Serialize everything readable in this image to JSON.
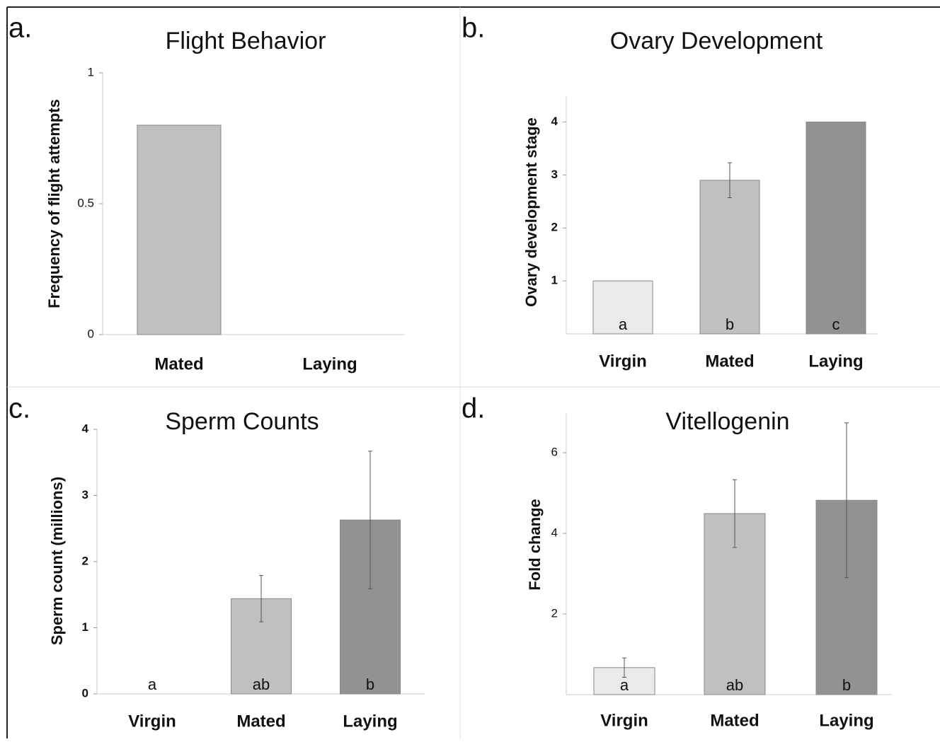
{
  "chart_data": [
    {
      "type": "bar",
      "panel_label": "a.",
      "title": "Flight Behavior",
      "y_label": "Frequency of flight attempts",
      "categories": [
        "Mated",
        "Laying"
      ],
      "values": [
        0.8,
        0
      ],
      "colors": [
        "#c0c0c0",
        "#c0c0c0"
      ],
      "ylim": [
        0,
        1
      ],
      "yticks": [
        0,
        0.5,
        1
      ]
    },
    {
      "type": "bar",
      "panel_label": "b.",
      "title": "Ovary Development",
      "y_label": "Ovary development stage",
      "categories": [
        "Virgin",
        "Mated",
        "Laying"
      ],
      "values": [
        1,
        2.9,
        4
      ],
      "errors": [
        null,
        0.33,
        null
      ],
      "bar_labels": [
        "a",
        "b",
        "c"
      ],
      "colors": [
        "#ebebeb",
        "#c0c0c0",
        "#929292"
      ],
      "ylim": [
        0,
        4.5
      ],
      "yticks": [
        1,
        2,
        3,
        4
      ]
    },
    {
      "type": "bar",
      "panel_label": "c.",
      "title": "Sperm Counts",
      "y_label": "Sperm count (millions)",
      "categories": [
        "Virgin",
        "Mated",
        "Laying"
      ],
      "values": [
        0,
        1.44,
        2.63
      ],
      "errors": [
        null,
        0.35,
        1.04
      ],
      "bar_labels": [
        "a",
        "ab",
        "b"
      ],
      "colors": [
        "#ebebeb",
        "#c0c0c0",
        "#929292"
      ],
      "ylim": [
        0,
        4
      ],
      "yticks": [
        0,
        1,
        2,
        3,
        4
      ]
    },
    {
      "type": "bar",
      "panel_label": "d.",
      "title": "Vitellogenin",
      "y_label": "Fold change",
      "categories": [
        "Virgin",
        "Mated",
        "Laying"
      ],
      "values": [
        0.67,
        4.49,
        4.82
      ],
      "errors": [
        0.24,
        0.84,
        1.92
      ],
      "bar_labels": [
        "a",
        "ab",
        "b"
      ],
      "colors": [
        "#ebebeb",
        "#c0c0c0",
        "#929292"
      ],
      "ylim": [
        0,
        7
      ],
      "yticks": [
        2,
        4,
        6
      ]
    }
  ]
}
